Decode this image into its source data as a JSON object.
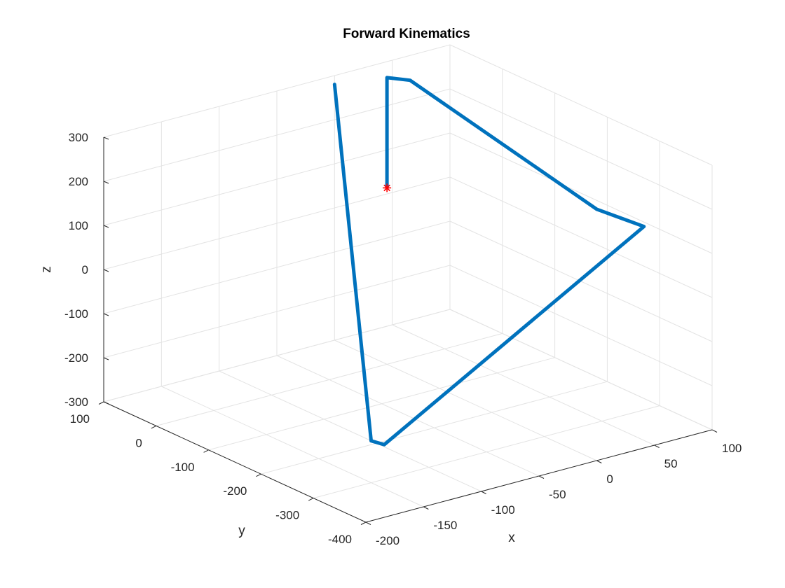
{
  "chart_data": {
    "type": "line",
    "projection": "3d",
    "title": "Forward Kinematics",
    "xlabel": "x",
    "ylabel": "y",
    "zlabel": "z",
    "xlim": [
      -200,
      100
    ],
    "ylim": [
      -400,
      100
    ],
    "zlim": [
      -300,
      300
    ],
    "xticks": [
      -200,
      -150,
      -100,
      -50,
      0,
      50,
      100
    ],
    "yticks": [
      -400,
      -300,
      -200,
      -100,
      0,
      100
    ],
    "zticks": [
      -300,
      -200,
      -100,
      0,
      100,
      200,
      300
    ],
    "grid": true,
    "series": [
      {
        "color": "#0072bd",
        "points": [
          {
            "x": 0,
            "y": 0,
            "z": 100
          },
          {
            "x": 0,
            "y": 0,
            "z": 350
          },
          {
            "x": 20,
            "y": 0,
            "z": 330
          },
          {
            "x": 100,
            "y": -180,
            "z": 80
          },
          {
            "x": 100,
            "y": -270,
            "z": 90
          },
          {
            "x": -150,
            "y": -325,
            "z": -200
          },
          {
            "x": -150,
            "y": -300,
            "z": -205
          },
          {
            "x": 0,
            "y": 100,
            "z": 280
          }
        ]
      }
    ],
    "markers": [
      {
        "x": 0,
        "y": 0,
        "z": 100,
        "symbol": "*",
        "color": "#ff0000"
      }
    ]
  }
}
